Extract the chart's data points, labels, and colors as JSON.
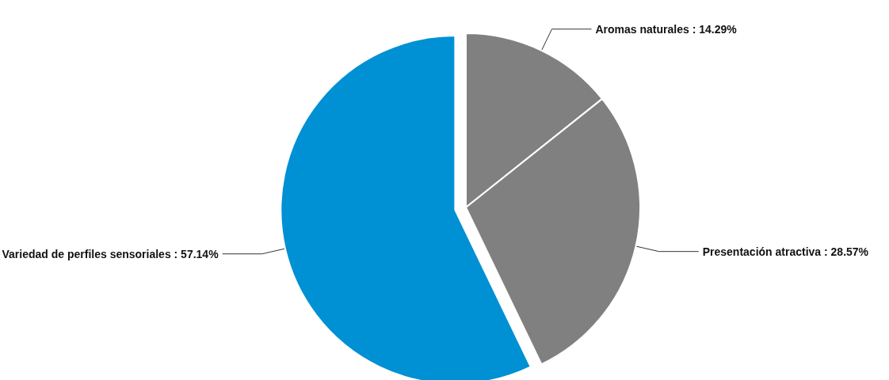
{
  "chart_data": {
    "type": "pie",
    "categories": [
      "Aromas naturales",
      "Presentación atractiva",
      "Variedad de perfiles sensoriales"
    ],
    "values": [
      14.29,
      28.57,
      57.14
    ],
    "value_labels": [
      "14.29%",
      "28.57%",
      "57.14%"
    ],
    "colors": [
      "#808080",
      "#808080",
      "#0090d4"
    ]
  }
}
